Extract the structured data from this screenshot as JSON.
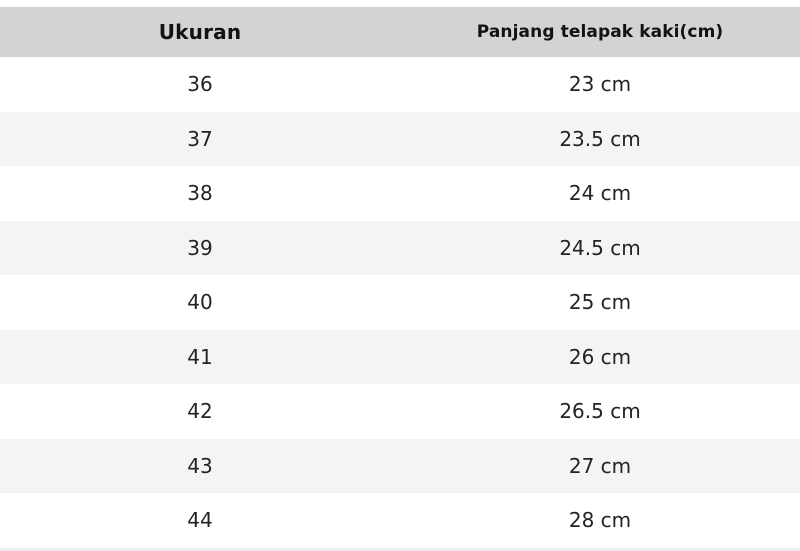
{
  "page": {
    "background_color": "#ffffff",
    "header_bg_color": "#d3d3d4",
    "stripe_bg_color": "#f4f4f6",
    "text_color": "#232323"
  },
  "chart_data": {
    "type": "table",
    "title": "",
    "columns": [
      "Ukuran",
      "Panjang telapak kaki(cm)"
    ],
    "rows": [
      [
        "36",
        "23 cm"
      ],
      [
        "37",
        "23.5 cm"
      ],
      [
        "38",
        "24 cm"
      ],
      [
        "39",
        "24.5 cm"
      ],
      [
        "40",
        "25 cm"
      ],
      [
        "41",
        "26 cm"
      ],
      [
        "42",
        "26.5 cm"
      ],
      [
        "43",
        "27 cm"
      ],
      [
        "44",
        "28 cm"
      ]
    ],
    "layout": {
      "zebra_striping": true,
      "header_background": "#d3d3d4",
      "alignment": "center"
    }
  }
}
